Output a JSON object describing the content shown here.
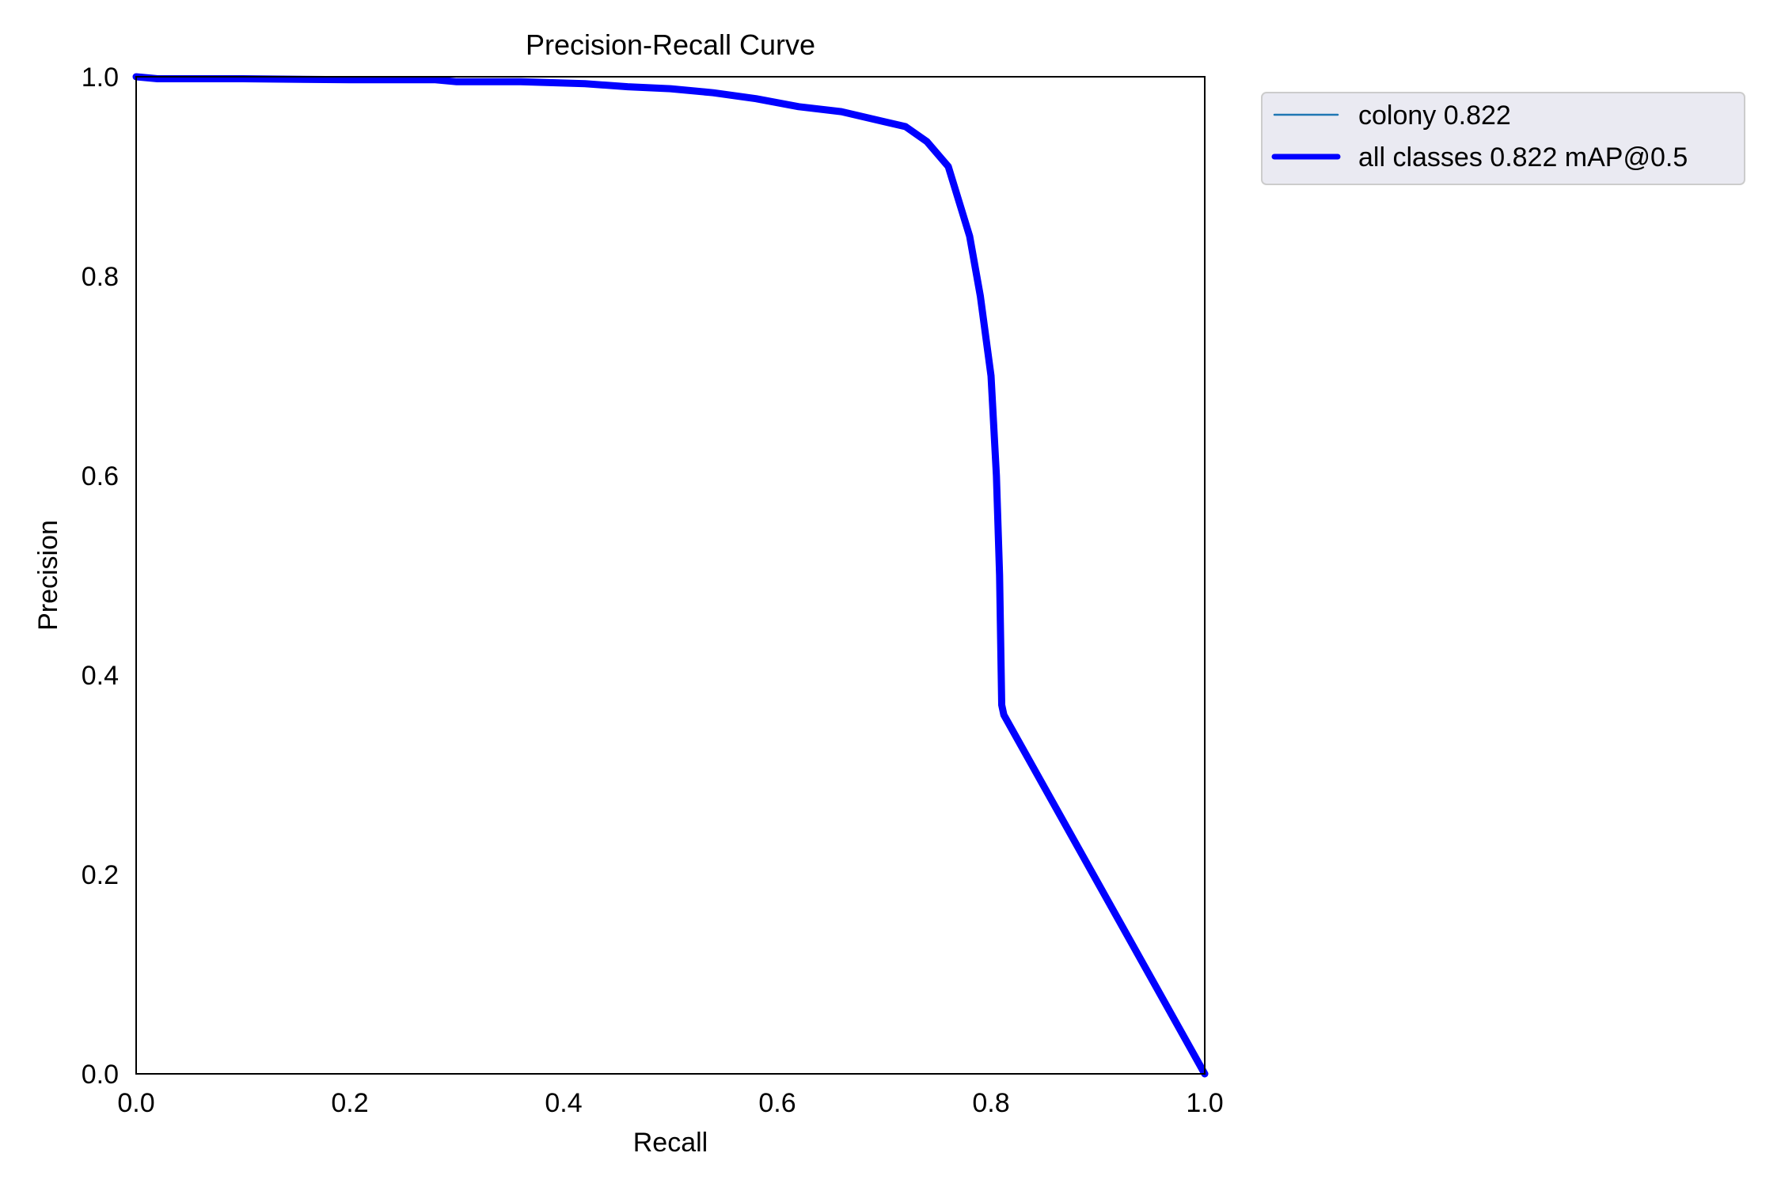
{
  "chart_data": {
    "type": "line",
    "title": "Precision-Recall Curve",
    "xlabel": "Recall",
    "ylabel": "Precision",
    "xlim": [
      0,
      1
    ],
    "ylim": [
      0,
      1
    ],
    "x_ticks": [
      "0.0",
      "0.2",
      "0.4",
      "0.6",
      "0.8",
      "1.0"
    ],
    "y_ticks": [
      "0.0",
      "0.2",
      "0.4",
      "0.6",
      "0.8",
      "1.0"
    ],
    "grid": false,
    "legend_position": "outside-top-right",
    "series": [
      {
        "name": "colony 0.822",
        "color": "#1f77b4",
        "style": "thin",
        "x": [
          0,
          0.02,
          0.1,
          0.2,
          0.28,
          0.3,
          0.36,
          0.42,
          0.46,
          0.5,
          0.54,
          0.58,
          0.62,
          0.66,
          0.7,
          0.72,
          0.74,
          0.76,
          0.78,
          0.79,
          0.8,
          0.805,
          0.808,
          0.81,
          0.812,
          1.0
        ],
        "y": [
          1.0,
          0.998,
          0.998,
          0.997,
          0.997,
          0.995,
          0.995,
          0.993,
          0.99,
          0.988,
          0.984,
          0.978,
          0.97,
          0.965,
          0.955,
          0.95,
          0.935,
          0.91,
          0.84,
          0.78,
          0.7,
          0.6,
          0.5,
          0.37,
          0.36,
          0.0
        ]
      },
      {
        "name": "all classes 0.822 mAP@0.5",
        "color": "#0000ff",
        "style": "thick",
        "x": [
          0,
          0.02,
          0.1,
          0.2,
          0.28,
          0.3,
          0.36,
          0.42,
          0.46,
          0.5,
          0.54,
          0.58,
          0.62,
          0.66,
          0.7,
          0.72,
          0.74,
          0.76,
          0.78,
          0.79,
          0.8,
          0.805,
          0.808,
          0.81,
          0.812,
          1.0
        ],
        "y": [
          1.0,
          0.998,
          0.998,
          0.997,
          0.997,
          0.995,
          0.995,
          0.993,
          0.99,
          0.988,
          0.984,
          0.978,
          0.97,
          0.965,
          0.955,
          0.95,
          0.935,
          0.91,
          0.84,
          0.78,
          0.7,
          0.6,
          0.5,
          0.37,
          0.36,
          0.0
        ]
      }
    ]
  }
}
